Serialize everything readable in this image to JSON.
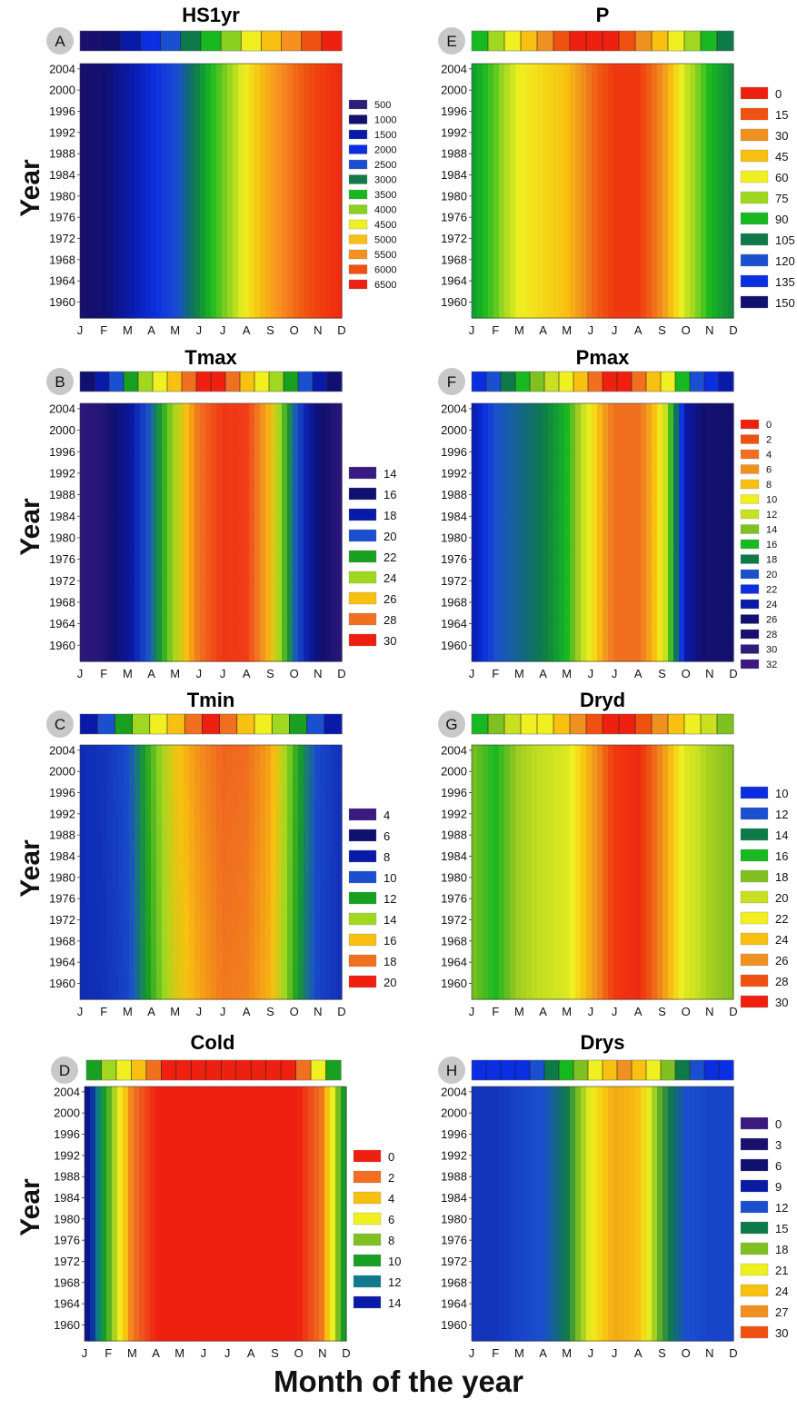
{
  "figure": {
    "y_axis_label": "Year",
    "x_axis_label": "Month of the year"
  },
  "colors": {
    "panel_letter_bg": "#c8c8c8"
  },
  "chart_data": [
    {
      "panel": "A",
      "title": "HS1yr",
      "type": "heatmap",
      "x": [
        "J",
        "F",
        "M",
        "A",
        "M",
        "J",
        "J",
        "A",
        "S",
        "O",
        "N",
        "D"
      ],
      "y_ticks": [
        "2004",
        "2000",
        "1996",
        "1992",
        "1988",
        "1984",
        "1980",
        "1976",
        "1972",
        "1968",
        "1964",
        "1960"
      ],
      "legend_values": [
        "500",
        "1000",
        "1500",
        "2000",
        "2500",
        "3000",
        "3500",
        "4000",
        "4500",
        "5000",
        "5500",
        "6000",
        "6500"
      ],
      "legend_colors": [
        "#2c1f7a",
        "#101070",
        "#0a1aa8",
        "#0a2ee0",
        "#1a4fd0",
        "#0e7a4a",
        "#18b820",
        "#8ad020",
        "#f0f020",
        "#f8c010",
        "#f89020",
        "#f05010",
        "#f02010"
      ],
      "seasonal_profile": [
        0,
        1,
        2,
        3,
        4,
        5.5,
        7,
        8.5,
        10,
        11,
        11.8,
        12.3
      ],
      "year_trend": 0,
      "scale_max": 12.5,
      "reverse": false,
      "gradient_colors": [
        "#1a0f6e",
        "#101070",
        "#0a1aa8",
        "#0a2ee0",
        "#1a4fd0",
        "#0e7a4a",
        "#18b820",
        "#8ad020",
        "#f0f020",
        "#f8c010",
        "#f89020",
        "#f05010",
        "#f02010"
      ],
      "colorbar": [
        "#1a0f6e",
        "#101070",
        "#0a1aa8",
        "#0a2ee0",
        "#1a4fd0",
        "#0e7a4a",
        "#18b820",
        "#8ad020",
        "#f0f020",
        "#f8c010",
        "#f89020",
        "#f05010",
        "#f02010"
      ]
    },
    {
      "panel": "B",
      "title": "Tmax",
      "type": "heatmap",
      "x": [
        "J",
        "F",
        "M",
        "A",
        "M",
        "J",
        "J",
        "A",
        "S",
        "O",
        "N",
        "D"
      ],
      "y_ticks": [
        "2004",
        "2000",
        "1996",
        "1992",
        "1988",
        "1984",
        "1980",
        "1976",
        "1972",
        "1968",
        "1964",
        "1960"
      ],
      "legend_values": [
        "14",
        "16",
        "18",
        "20",
        "22",
        "24",
        "26",
        "28",
        "30"
      ],
      "legend_colors": [
        "#3a1a80",
        "#101070",
        "#0a1aa8",
        "#1a4fd0",
        "#18a020",
        "#a0d820",
        "#f8c010",
        "#f07020",
        "#f02010"
      ],
      "seasonal_profile": [
        0.3,
        0.6,
        1.8,
        3.5,
        5.5,
        7.5,
        8.3,
        8.2,
        6.5,
        3.5,
        1.2,
        0.4
      ],
      "year_trend": 0,
      "scale_max": 8.6,
      "reverse": false,
      "gradient_colors": [
        "#3a1a80",
        "#101070",
        "#0a1aa8",
        "#1a4fd0",
        "#18a020",
        "#a0d820",
        "#f8c010",
        "#f07020",
        "#f02010"
      ],
      "colorbar": [
        "#101070",
        "#0a1aa8",
        "#1a4fd0",
        "#18a020",
        "#a0d820",
        "#f0f020",
        "#f8c010",
        "#f07020",
        "#f02010",
        "#f02010",
        "#f07020",
        "#f8c010",
        "#f0f020",
        "#a0d820",
        "#18a020",
        "#1a4fd0",
        "#0a1aa8",
        "#101070"
      ]
    },
    {
      "panel": "C",
      "title": "Tmin",
      "type": "heatmap",
      "x": [
        "J",
        "F",
        "M",
        "A",
        "M",
        "J",
        "J",
        "A",
        "S",
        "O",
        "N",
        "D"
      ],
      "y_ticks": [
        "2004",
        "2000",
        "1996",
        "1992",
        "1988",
        "1984",
        "1980",
        "1976",
        "1972",
        "1968",
        "1964",
        "1960"
      ],
      "legend_values": [
        "4",
        "6",
        "8",
        "10",
        "12",
        "14",
        "16",
        "18",
        "20"
      ],
      "legend_colors": [
        "#3a1a80",
        "#101070",
        "#0a1aa8",
        "#1a4fd0",
        "#18a020",
        "#a0d820",
        "#f8c010",
        "#f07020",
        "#f02010"
      ],
      "seasonal_profile": [
        2.5,
        2.6,
        3.0,
        4.5,
        6.0,
        6.8,
        7.4,
        7.3,
        6.6,
        4.5,
        3.0,
        2.6
      ],
      "year_trend": 0.3,
      "scale_max": 8.6,
      "reverse": false,
      "gradient_colors": [
        "#3a1a80",
        "#101070",
        "#0a1aa8",
        "#1a4fd0",
        "#18a020",
        "#a0d820",
        "#f8c010",
        "#f07020",
        "#f02010"
      ],
      "colorbar": [
        "#0a1aa8",
        "#1a4fd0",
        "#18a020",
        "#a0d820",
        "#f0f020",
        "#f8c010",
        "#f07020",
        "#f02010",
        "#f07020",
        "#f8c010",
        "#f0f020",
        "#a0d820",
        "#18a020",
        "#1a4fd0",
        "#0a1aa8"
      ]
    },
    {
      "panel": "D",
      "title": "Cold",
      "type": "heatmap",
      "x": [
        "J",
        "F",
        "M",
        "A",
        "M",
        "J",
        "J",
        "A",
        "S",
        "O",
        "N",
        "D"
      ],
      "y_ticks": [
        "2004",
        "2000",
        "1996",
        "1992",
        "1988",
        "1984",
        "1980",
        "1976",
        "1972",
        "1968",
        "1964",
        "1960"
      ],
      "legend_values": [
        "0",
        "2",
        "4",
        "6",
        "8",
        "10",
        "12",
        "14"
      ],
      "legend_colors": [
        "#f02010",
        "#f07020",
        "#f8c010",
        "#f0f020",
        "#80c020",
        "#18a020",
        "#0e7a8a",
        "#0a1aa8"
      ],
      "seasonal_profile": [
        7.0,
        4.0,
        1.0,
        0,
        0,
        0,
        0,
        0,
        0,
        0,
        1.0,
        5.0
      ],
      "year_trend": 0,
      "scale_max": 8,
      "reverse": true,
      "gradient_colors": [
        "#f02010",
        "#f07020",
        "#f8c010",
        "#f0f020",
        "#80c020",
        "#18a020",
        "#0e7a8a",
        "#0a1aa8",
        "#101070",
        "#3a1a80"
      ],
      "colorbar": [
        "#18a020",
        "#a0d820",
        "#f0f020",
        "#f8c010",
        "#f07020",
        "#f02010",
        "#f02010",
        "#f02010",
        "#f02010",
        "#f02010",
        "#f02010",
        "#f02010",
        "#f02010",
        "#f02010",
        "#f07020",
        "#f0f020",
        "#18a020"
      ]
    },
    {
      "panel": "E",
      "title": "P",
      "type": "heatmap",
      "x": [
        "J",
        "F",
        "M",
        "A",
        "M",
        "J",
        "J",
        "A",
        "S",
        "O",
        "N",
        "D"
      ],
      "y_ticks": [
        "2004",
        "2000",
        "1996",
        "1992",
        "1988",
        "1984",
        "1980",
        "1976",
        "1972",
        "1968",
        "1964",
        "1960"
      ],
      "legend_values": [
        "0",
        "15",
        "30",
        "45",
        "60",
        "75",
        "90",
        "105",
        "120",
        "135",
        "150"
      ],
      "legend_colors": [
        "#f02010",
        "#f05010",
        "#f09020",
        "#f8c010",
        "#f0f020",
        "#a0d820",
        "#18b820",
        "#0e7a4a",
        "#1a4fd0",
        "#0a2ee0",
        "#101070"
      ],
      "seasonal_profile": [
        6.5,
        5.5,
        4.0,
        3.5,
        3.0,
        1.5,
        0.5,
        0.5,
        2.0,
        4.5,
        6.0,
        6.8
      ],
      "year_trend": 0,
      "scale_max": 10,
      "reverse": true,
      "gradient_colors": [
        "#f02010",
        "#f05010",
        "#f09020",
        "#f8c010",
        "#f0f020",
        "#a0d820",
        "#18b820",
        "#0e7a4a",
        "#1a4fd0",
        "#0a2ee0",
        "#101070"
      ],
      "colorbar": [
        "#18b820",
        "#a0d820",
        "#f0f020",
        "#f8c010",
        "#f09020",
        "#f05010",
        "#f02010",
        "#f02010",
        "#f02010",
        "#f05010",
        "#f09020",
        "#f8c010",
        "#f0f020",
        "#a0d820",
        "#18b820",
        "#0e7a4a"
      ]
    },
    {
      "panel": "F",
      "title": "Pmax",
      "type": "heatmap",
      "x": [
        "J",
        "F",
        "M",
        "A",
        "M",
        "J",
        "J",
        "A",
        "S",
        "O",
        "N",
        "D"
      ],
      "y_ticks": [
        "2004",
        "2000",
        "1996",
        "1992",
        "1988",
        "1984",
        "1980",
        "1976",
        "1972",
        "1968",
        "1964",
        "1960"
      ],
      "legend_values": [
        "0",
        "2",
        "4",
        "6",
        "8",
        "10",
        "12",
        "14",
        "16",
        "18",
        "20",
        "22",
        "24",
        "26",
        "28",
        "30",
        "32"
      ],
      "legend_colors": [
        "#f02010",
        "#f05010",
        "#f07020",
        "#f09020",
        "#f8c010",
        "#f0f020",
        "#c8e020",
        "#80c020",
        "#18b820",
        "#0e7a4a",
        "#1a4fd0",
        "#0a2ee0",
        "#0a1aa8",
        "#101070",
        "#1a0f6e",
        "#2c1f7a",
        "#3a1a80"
      ],
      "seasonal_profile": [
        12.0,
        10.0,
        9.5,
        9.0,
        8.0,
        5.0,
        2.0,
        2.0,
        5.0,
        12.0,
        13.5,
        13.0
      ],
      "year_trend": 0,
      "scale_max": 16,
      "reverse": true,
      "gradient_colors": [
        "#f02010",
        "#f05010",
        "#f07020",
        "#f09020",
        "#f8c010",
        "#f0f020",
        "#c8e020",
        "#80c020",
        "#18b820",
        "#0e7a4a",
        "#1a4fd0",
        "#0a2ee0",
        "#0a1aa8",
        "#101070",
        "#1a0f6e",
        "#2c1f7a",
        "#3a1a80"
      ],
      "colorbar": [
        "#0a2ee0",
        "#1a4fd0",
        "#0e7a4a",
        "#18b820",
        "#80c020",
        "#c8e020",
        "#f0f020",
        "#f8c010",
        "#f07020",
        "#f02010",
        "#f02010",
        "#f07020",
        "#f8c010",
        "#f0f020",
        "#18b820",
        "#1a4fd0",
        "#0a2ee0",
        "#0a1aa8"
      ]
    },
    {
      "panel": "G",
      "title": "Dryd",
      "type": "heatmap",
      "x": [
        "J",
        "F",
        "M",
        "A",
        "M",
        "J",
        "J",
        "A",
        "S",
        "O",
        "N",
        "D"
      ],
      "y_ticks": [
        "2004",
        "2000",
        "1996",
        "1992",
        "1988",
        "1984",
        "1980",
        "1976",
        "1972",
        "1968",
        "1964",
        "1960"
      ],
      "legend_values": [
        "10",
        "12",
        "14",
        "16",
        "18",
        "20",
        "22",
        "24",
        "26",
        "28",
        "30"
      ],
      "legend_colors": [
        "#0a2ee0",
        "#1a4fd0",
        "#0e7a4a",
        "#18b820",
        "#80c020",
        "#c8e020",
        "#f0f020",
        "#f8c010",
        "#f09020",
        "#f05010",
        "#f02010"
      ],
      "seasonal_profile": [
        4.0,
        3.0,
        4.5,
        5.0,
        5.5,
        7.5,
        9.5,
        9.8,
        8.0,
        5.5,
        4.5,
        4.0
      ],
      "year_trend": 0,
      "scale_max": 10,
      "reverse": false,
      "gradient_colors": [
        "#0a2ee0",
        "#1a4fd0",
        "#0e7a4a",
        "#18b820",
        "#80c020",
        "#c8e020",
        "#f0f020",
        "#f8c010",
        "#f09020",
        "#f05010",
        "#f02010"
      ],
      "colorbar": [
        "#18b820",
        "#80c020",
        "#c8e020",
        "#f0f020",
        "#f0f020",
        "#f8c010",
        "#f09020",
        "#f05010",
        "#f02010",
        "#f02010",
        "#f05010",
        "#f09020",
        "#f8c010",
        "#f0f020",
        "#c8e020",
        "#80c020"
      ]
    },
    {
      "panel": "H",
      "title": "Drys",
      "type": "heatmap",
      "x": [
        "J",
        "F",
        "M",
        "A",
        "M",
        "J",
        "J",
        "A",
        "S",
        "O",
        "N",
        "D"
      ],
      "y_ticks": [
        "2004",
        "2000",
        "1996",
        "1992",
        "1988",
        "1984",
        "1980",
        "1976",
        "1972",
        "1968",
        "1964",
        "1960"
      ],
      "legend_values": [
        "0",
        "3",
        "6",
        "9",
        "12",
        "15",
        "18",
        "21",
        "24",
        "27",
        "30"
      ],
      "legend_colors": [
        "#3a1a80",
        "#1a0f6e",
        "#101070",
        "#0a1aa8",
        "#1a4fd0",
        "#0e7a4a",
        "#80c020",
        "#f0f020",
        "#f8c010",
        "#f09020",
        "#f05010"
      ],
      "seasonal_profile": [
        3.5,
        3.5,
        3.8,
        4.0,
        5.0,
        7.0,
        8.5,
        8.0,
        5.5,
        4.0,
        3.8,
        3.8
      ],
      "year_trend": 0,
      "scale_max": 10,
      "reverse": false,
      "gradient_colors": [
        "#3a1a80",
        "#1a0f6e",
        "#101070",
        "#0a1aa8",
        "#1a4fd0",
        "#0e7a4a",
        "#80c020",
        "#f0f020",
        "#f8c010",
        "#f09020",
        "#f05010"
      ],
      "colorbar": [
        "#0a2ee0",
        "#0a2ee0",
        "#0a2ee0",
        "#0a2ee0",
        "#1a4fd0",
        "#0e7a4a",
        "#18b820",
        "#80c020",
        "#f0f020",
        "#f8c010",
        "#f09020",
        "#f8c010",
        "#f0f020",
        "#80c020",
        "#0e7a4a",
        "#1a4fd0",
        "#0a2ee0",
        "#0a2ee0"
      ]
    }
  ]
}
